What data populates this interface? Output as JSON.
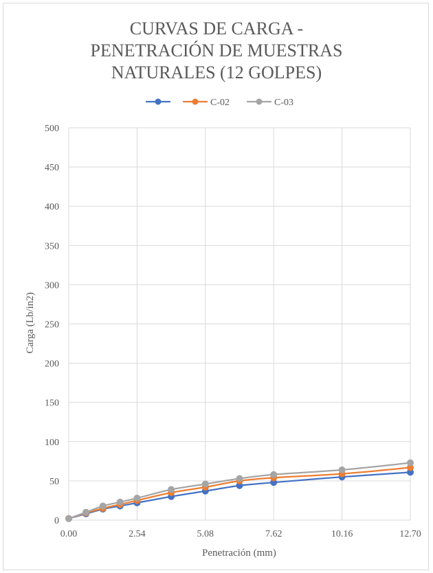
{
  "chart_data": {
    "type": "line",
    "title": [
      "CURVAS DE CARGA -",
      "PENETRACIÓN DE MUESTRAS",
      "NATURALES (12 GOLPES)"
    ],
    "xlabel": "Penetración (mm)",
    "ylabel": "Carga (Lb/in2)",
    "xlim": [
      0,
      12.7
    ],
    "ylim": [
      0,
      500
    ],
    "x_ticks": [
      "0.00",
      "2.54",
      "5.08",
      "7.62",
      "10.16",
      "12.70"
    ],
    "x_tick_values": [
      0,
      2.54,
      5.08,
      7.62,
      10.16,
      12.7
    ],
    "y_ticks": [
      "0",
      "50",
      "100",
      "150",
      "200",
      "250",
      "300",
      "350",
      "400",
      "450",
      "500"
    ],
    "y_tick_values": [
      0,
      50,
      100,
      150,
      200,
      250,
      300,
      350,
      400,
      450,
      500
    ],
    "grid": true,
    "legend_position": "top",
    "x": [
      0,
      0.64,
      1.27,
      1.91,
      2.54,
      3.81,
      5.08,
      6.35,
      7.62,
      10.16,
      12.7
    ],
    "series": [
      {
        "name": "",
        "color": "#4472c4",
        "values": [
          2,
          8,
          14,
          18,
          22,
          30,
          37,
          44,
          48,
          55,
          61
        ]
      },
      {
        "name": "C-02",
        "color": "#ed7d31",
        "values": [
          2,
          9,
          15,
          20,
          25,
          35,
          42,
          50,
          54,
          59,
          67
        ]
      },
      {
        "name": "C-03",
        "color": "#a5a5a5",
        "values": [
          2,
          10,
          18,
          23,
          28,
          39,
          46,
          53,
          58,
          64,
          73
        ]
      }
    ]
  }
}
